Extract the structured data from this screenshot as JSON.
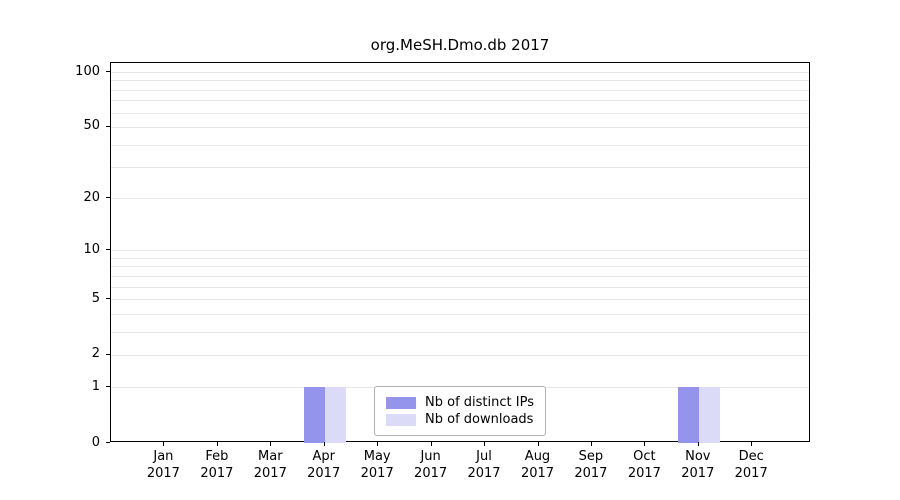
{
  "chart_data": {
    "type": "bar",
    "title": "org.MeSH.Dmo.db 2017",
    "categories": [
      "Jan",
      "Feb",
      "Mar",
      "Apr",
      "May",
      "Jun",
      "Jul",
      "Aug",
      "Sep",
      "Oct",
      "Nov",
      "Dec"
    ],
    "year_label": "2017",
    "series": [
      {
        "name": "Nb of distinct IPs",
        "color": "#9494ed",
        "values": [
          0,
          0,
          0,
          1,
          0,
          0,
          0,
          0,
          0,
          0,
          1,
          0
        ]
      },
      {
        "name": "Nb of downloads",
        "color": "#dbdbf8",
        "values": [
          0,
          0,
          0,
          1,
          0,
          0,
          0,
          0,
          0,
          0,
          1,
          0
        ]
      }
    ],
    "yscale": "log1p",
    "yticks": [
      0,
      1,
      2,
      5,
      10,
      20,
      50,
      100
    ],
    "ylim": [
      0,
      110
    ],
    "grid": true,
    "gridline_values": [
      1,
      2,
      3,
      4,
      5,
      6,
      7,
      8,
      9,
      10,
      20,
      30,
      40,
      50,
      60,
      70,
      80,
      90,
      100
    ],
    "legend_position": "bottom-center"
  }
}
